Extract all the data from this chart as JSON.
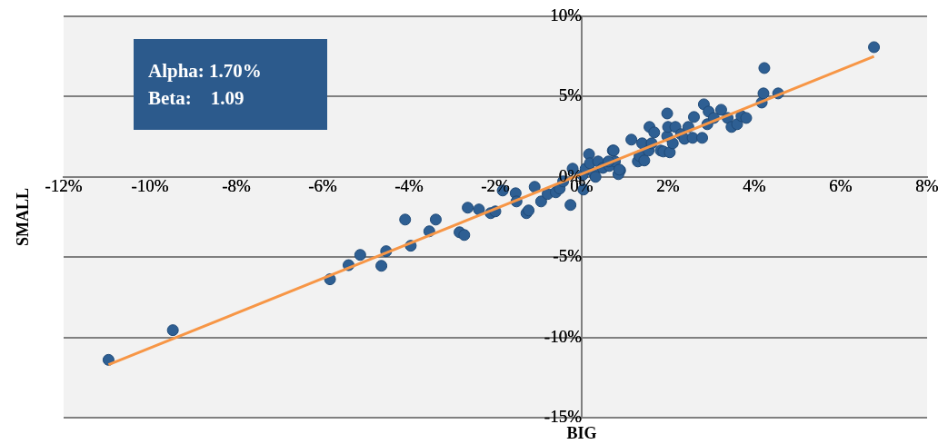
{
  "chart_data": {
    "type": "scatter",
    "xlabel": "BIG",
    "ylabel": "SMALL",
    "annotations": [
      "Alpha: 1.70%",
      "Beta:    1.09"
    ],
    "xlim": [
      -12,
      8
    ],
    "ylim": [
      -15,
      10
    ],
    "xticks": [
      {
        "value": -12,
        "label": "-12%"
      },
      {
        "value": -10,
        "label": "-10%"
      },
      {
        "value": -8,
        "label": "-8%"
      },
      {
        "value": -6,
        "label": "-6%"
      },
      {
        "value": -4,
        "label": "-4%"
      },
      {
        "value": -2,
        "label": "-2%"
      },
      {
        "value": 0,
        "label": "0%"
      },
      {
        "value": 2,
        "label": "2%"
      },
      {
        "value": 4,
        "label": "4%"
      },
      {
        "value": 6,
        "label": "6%"
      },
      {
        "value": 8,
        "label": "8%"
      }
    ],
    "yticks": [
      {
        "value": -15,
        "label": "-15%"
      },
      {
        "value": -10,
        "label": "-10%"
      },
      {
        "value": -5,
        "label": "-5%"
      },
      {
        "value": 0,
        "label": "0%"
      },
      {
        "value": 5,
        "label": "5%"
      },
      {
        "value": 10,
        "label": "10%"
      }
    ],
    "grid": "y",
    "legend": false,
    "marker": "circle",
    "series": [
      {
        "type": "scatter",
        "color": "#2e5f93",
        "x": [
          -10.96,
          -9.47,
          -5.83,
          -5.4,
          -5.13,
          -4.64,
          -4.53,
          -4.09,
          -3.96,
          -3.53,
          -3.38,
          -2.83,
          -2.72,
          -2.64,
          -2.38,
          -2.11,
          -2.0,
          -1.83,
          -1.53,
          -1.51,
          -1.28,
          -1.23,
          -1.09,
          -0.94,
          -0.79,
          -0.6,
          -0.51,
          -0.43,
          -0.26,
          -0.21,
          0.04,
          0.02,
          0.09,
          0.17,
          0.19,
          0.28,
          0.38,
          0.32,
          0.49,
          0.64,
          0.72,
          0.77,
          0.89,
          0.62,
          0.74,
          0.85,
          0.87,
          1.15,
          1.3,
          1.34,
          1.4,
          1.45,
          1.55,
          1.57,
          1.62,
          1.68,
          1.83,
          1.89,
          1.98,
          1.98,
          2.0,
          2.04,
          2.11,
          2.17,
          2.3,
          2.38,
          2.47,
          2.57,
          2.6,
          2.79,
          2.83,
          2.91,
          2.94,
          3.06,
          3.23,
          3.38,
          3.47,
          3.6,
          3.7,
          3.81,
          4.17,
          4.21,
          4.23,
          4.55,
          6.77
        ],
        "values": [
          -11.4,
          -9.55,
          -6.38,
          -5.5,
          -4.86,
          -5.54,
          -4.63,
          -2.66,
          -4.29,
          -3.39,
          -2.66,
          -3.45,
          -3.62,
          -1.92,
          -2.03,
          -2.26,
          -2.15,
          -0.85,
          -1.02,
          -1.53,
          -2.26,
          -2.09,
          -0.62,
          -1.53,
          -1.07,
          -0.96,
          -0.73,
          -0.28,
          -1.75,
          0.51,
          -0.79,
          0.11,
          0.51,
          1.41,
          0.85,
          0.23,
          0.96,
          0,
          0.56,
          0.68,
          1.64,
          0.96,
          0.4,
          0.96,
          1.64,
          0.17,
          0.45,
          2.32,
          0.96,
          1.3,
          2.09,
          1.02,
          1.64,
          3.11,
          2.09,
          2.77,
          1.64,
          1.58,
          2.54,
          3.95,
          3.11,
          1.53,
          2.09,
          3.11,
          2.66,
          2.37,
          3.11,
          2.43,
          3.73,
          2.43,
          4.52,
          3.28,
          4.07,
          3.67,
          4.18,
          3.67,
          3.11,
          3.28,
          3.79,
          3.67,
          4.63,
          5.2,
          6.78,
          5.2,
          8.08
        ]
      },
      {
        "type": "line",
        "color": "#f79646",
        "marker": "none",
        "x": [
          -10.96,
          6.77
        ],
        "values": [
          -11.7,
          7.51
        ]
      }
    ]
  }
}
